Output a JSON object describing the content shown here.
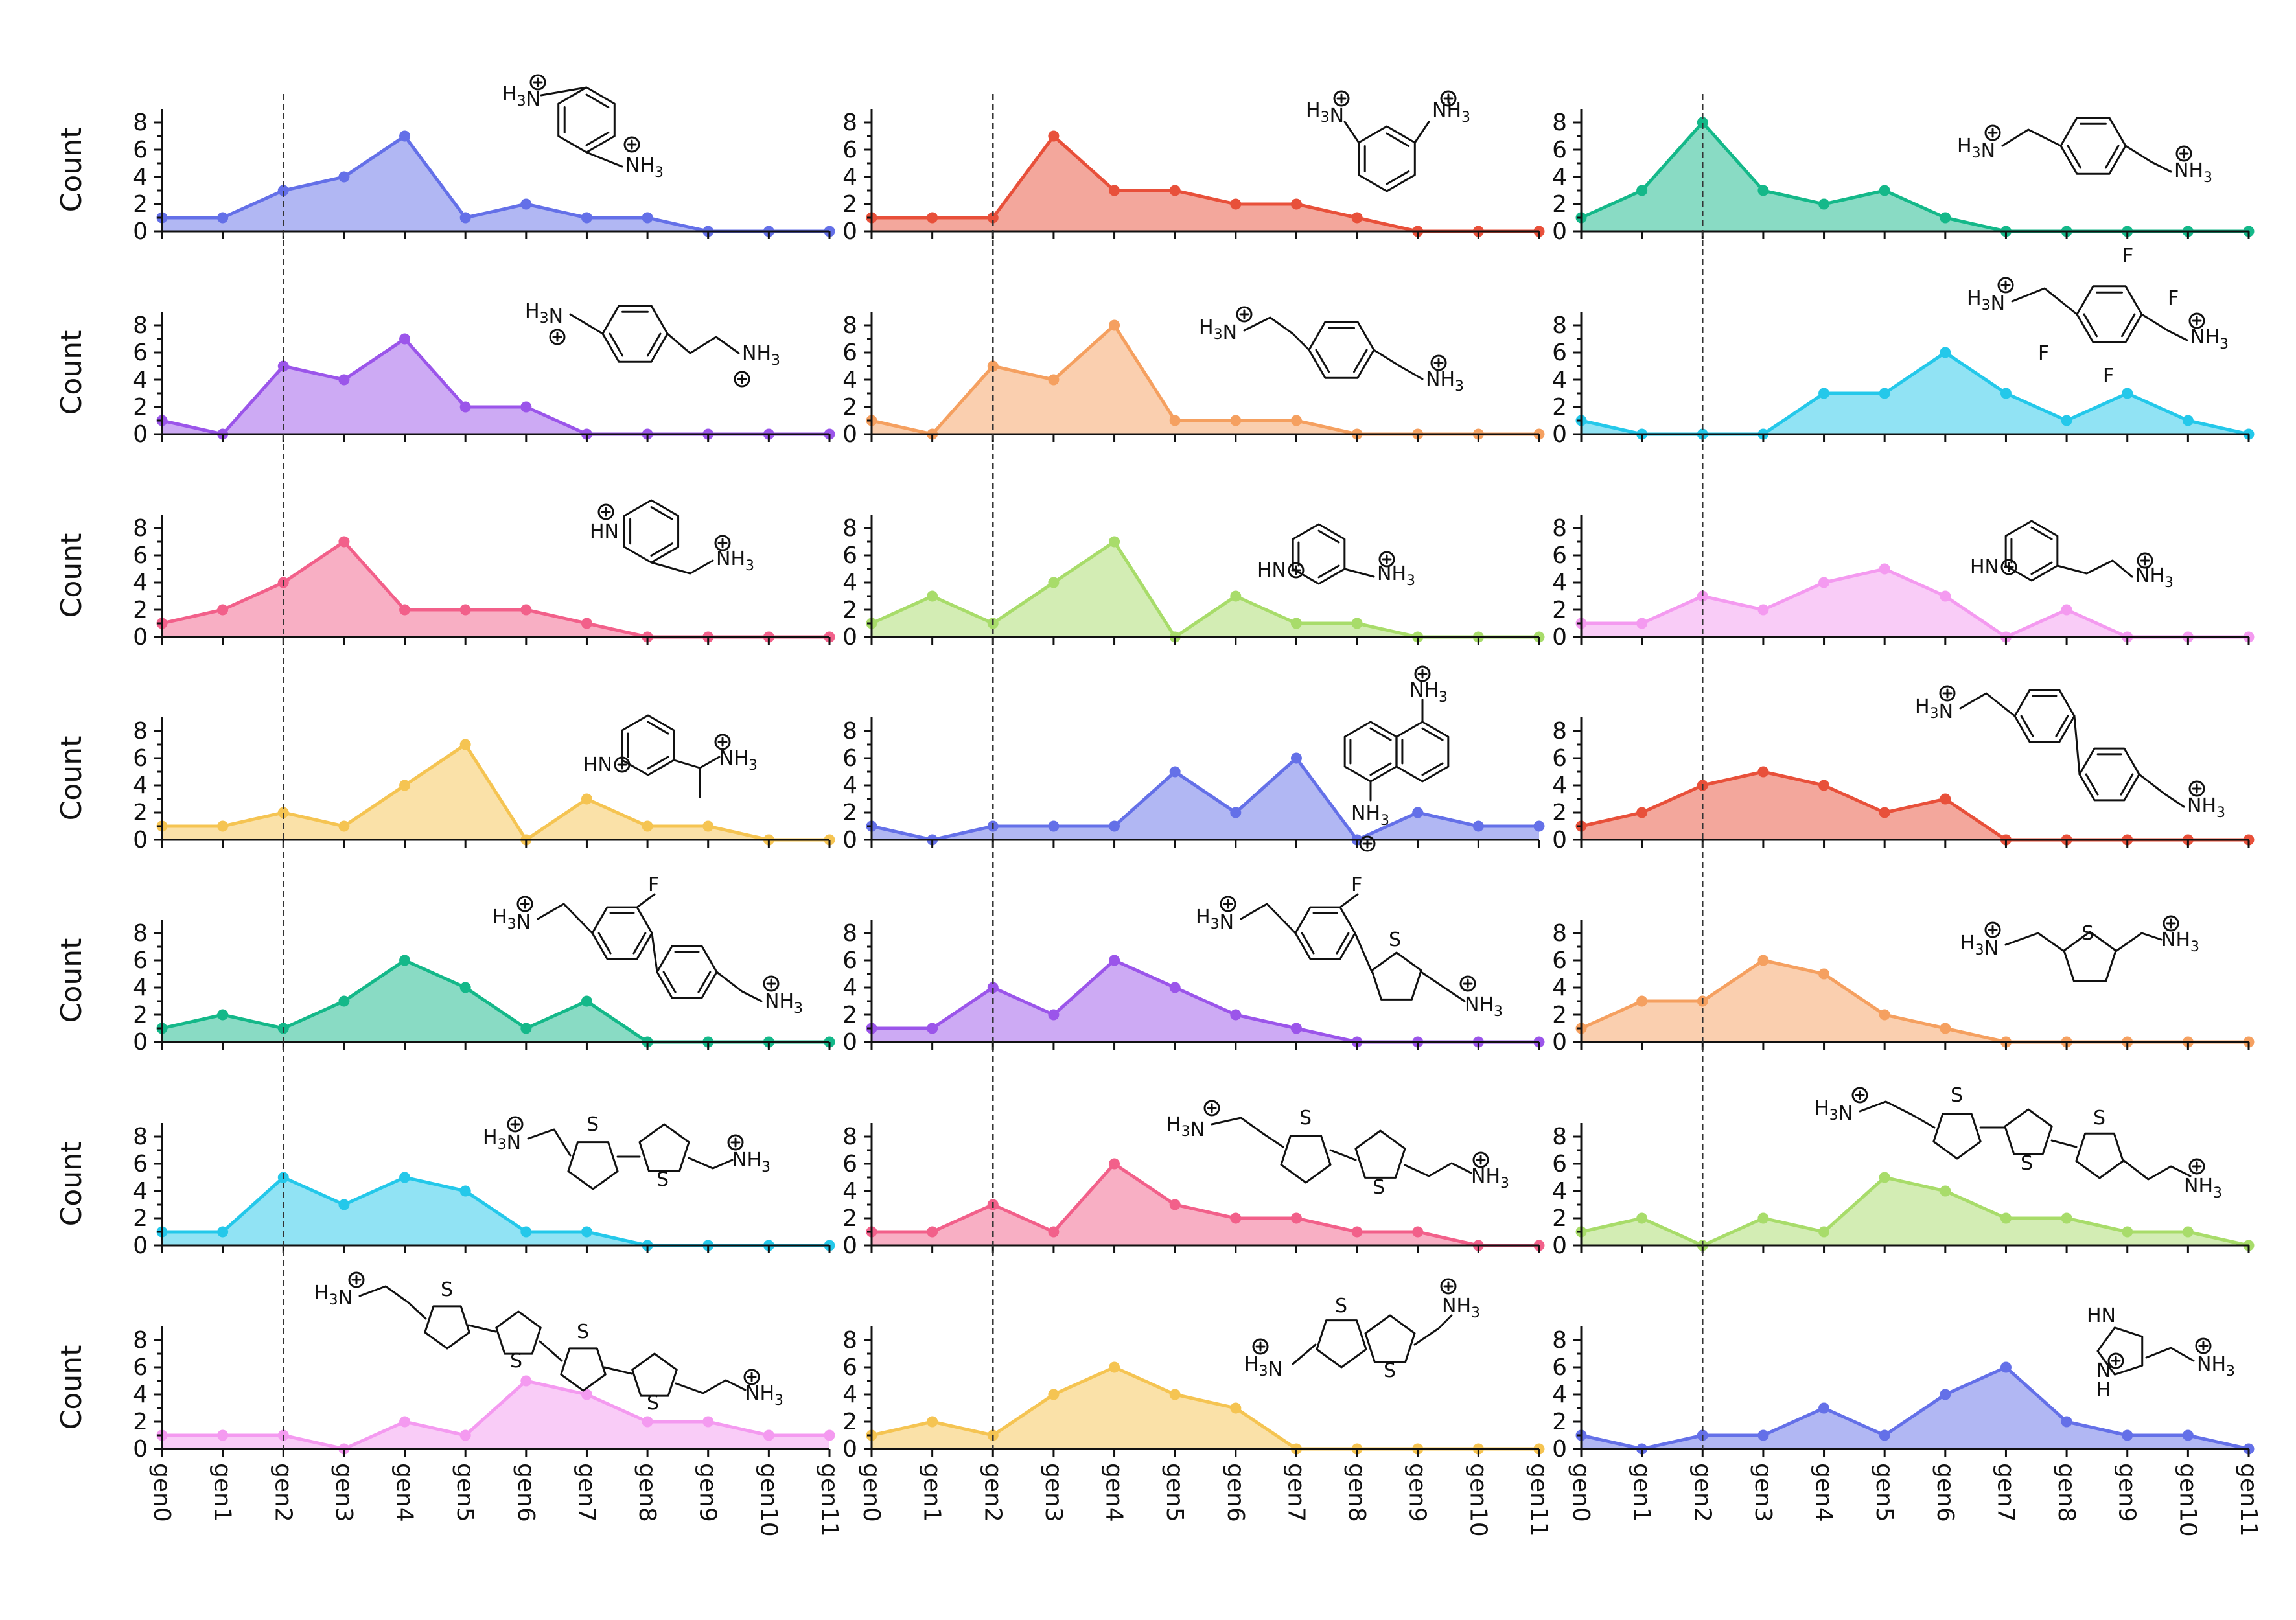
{
  "figure": {
    "ylabel": "Count",
    "x_categories": [
      "gen0",
      "gen1",
      "gen2",
      "gen3",
      "gen4",
      "gen5",
      "gen6",
      "gen7",
      "gen8",
      "gen9",
      "gen10",
      "gen11"
    ],
    "reference_line": "gen2",
    "y_ticks": [
      0,
      2,
      4,
      6,
      8
    ]
  },
  "chart_data": [
    {
      "type": "area",
      "panel": "r1c1",
      "categories": [
        "gen0",
        "gen1",
        "gen2",
        "gen3",
        "gen4",
        "gen5",
        "gen6",
        "gen7",
        "gen8",
        "gen9",
        "gen10",
        "gen11"
      ],
      "values": [
        1,
        1,
        3,
        4,
        7,
        1,
        2,
        1,
        1,
        0,
        0,
        0
      ],
      "color": "#6470e8",
      "ylabel": "Count",
      "ylim": [
        0,
        9
      ],
      "molecule": {
        "type": "benzene-para",
        "labels": [
          "H3N",
          "NH3"
        ],
        "charges": true
      }
    },
    {
      "type": "area",
      "panel": "r1c2",
      "categories": [
        "gen0",
        "gen1",
        "gen2",
        "gen3",
        "gen4",
        "gen5",
        "gen6",
        "gen7",
        "gen8",
        "gen9",
        "gen10",
        "gen11"
      ],
      "values": [
        1,
        1,
        1,
        7,
        3,
        3,
        2,
        2,
        1,
        0,
        0,
        0
      ],
      "color": "#e8503a",
      "ylabel": "",
      "ylim": [
        0,
        9
      ],
      "molecule": {
        "type": "benzene-meta",
        "labels": [
          "H3N",
          "NH3"
        ],
        "charges": true
      }
    },
    {
      "type": "area",
      "panel": "r1c3",
      "categories": [
        "gen0",
        "gen1",
        "gen2",
        "gen3",
        "gen4",
        "gen5",
        "gen6",
        "gen7",
        "gen8",
        "gen9",
        "gen10",
        "gen11"
      ],
      "values": [
        1,
        3,
        8,
        3,
        2,
        3,
        1,
        0,
        0,
        0,
        0,
        0
      ],
      "color": "#14b889",
      "ylabel": "",
      "ylim": [
        0,
        9
      ],
      "molecule": {
        "type": "xylyl",
        "labels": [
          "H3N",
          "NH3"
        ],
        "charges": true
      }
    },
    {
      "type": "area",
      "panel": "r2c1",
      "categories": [
        "gen0",
        "gen1",
        "gen2",
        "gen3",
        "gen4",
        "gen5",
        "gen6",
        "gen7",
        "gen8",
        "gen9",
        "gen10",
        "gen11"
      ],
      "values": [
        1,
        0,
        5,
        4,
        7,
        2,
        2,
        0,
        0,
        0,
        0,
        0
      ],
      "color": "#9b55ea",
      "ylabel": "Count",
      "ylim": [
        0,
        9
      ],
      "molecule": {
        "type": "aryl-ethyl",
        "labels": [
          "H3N",
          "NH3"
        ],
        "charges": true
      }
    },
    {
      "type": "area",
      "panel": "r2c2",
      "categories": [
        "gen0",
        "gen1",
        "gen2",
        "gen3",
        "gen4",
        "gen5",
        "gen6",
        "gen7",
        "gen8",
        "gen9",
        "gen10",
        "gen11"
      ],
      "values": [
        1,
        0,
        5,
        4,
        8,
        1,
        1,
        1,
        0,
        0,
        0,
        0
      ],
      "color": "#f5a060",
      "ylabel": "",
      "ylim": [
        0,
        9
      ],
      "molecule": {
        "type": "bis-ethyl",
        "labels": [
          "H3N",
          "NH3"
        ],
        "charges": true
      }
    },
    {
      "type": "area",
      "panel": "r2c3",
      "categories": [
        "gen0",
        "gen1",
        "gen2",
        "gen3",
        "gen4",
        "gen5",
        "gen6",
        "gen7",
        "gen8",
        "gen9",
        "gen10",
        "gen11"
      ],
      "values": [
        1,
        0,
        0,
        0,
        3,
        3,
        6,
        3,
        1,
        3,
        1,
        0
      ],
      "color": "#24c8ea",
      "ylabel": "",
      "ylim": [
        0,
        9
      ],
      "molecule": {
        "type": "tetrafluoro-xylyl",
        "labels": [
          "H3N",
          "NH3",
          "F",
          "F",
          "F",
          "F"
        ],
        "charges": true
      }
    },
    {
      "type": "area",
      "panel": "r3c1",
      "categories": [
        "gen0",
        "gen1",
        "gen2",
        "gen3",
        "gen4",
        "gen5",
        "gen6",
        "gen7",
        "gen8",
        "gen9",
        "gen10",
        "gen11"
      ],
      "values": [
        1,
        2,
        4,
        7,
        2,
        2,
        2,
        1,
        0,
        0,
        0,
        0
      ],
      "color": "#f2608a",
      "ylabel": "Count",
      "ylim": [
        0,
        9
      ],
      "molecule": {
        "type": "pyridinium-4-methyl",
        "labels": [
          "HN",
          "NH3"
        ],
        "charges": true
      }
    },
    {
      "type": "area",
      "panel": "r3c2",
      "categories": [
        "gen0",
        "gen1",
        "gen2",
        "gen3",
        "gen4",
        "gen5",
        "gen6",
        "gen7",
        "gen8",
        "gen9",
        "gen10",
        "gen11"
      ],
      "values": [
        1,
        3,
        1,
        4,
        7,
        0,
        3,
        1,
        1,
        0,
        0,
        0
      ],
      "color": "#a8dc6a",
      "ylabel": "",
      "ylim": [
        0,
        9
      ],
      "molecule": {
        "type": "pyridinium-3-methyl",
        "labels": [
          "HN",
          "NH3"
        ],
        "charges": true
      }
    },
    {
      "type": "area",
      "panel": "r3c3",
      "categories": [
        "gen0",
        "gen1",
        "gen2",
        "gen3",
        "gen4",
        "gen5",
        "gen6",
        "gen7",
        "gen8",
        "gen9",
        "gen10",
        "gen11"
      ],
      "values": [
        1,
        1,
        3,
        2,
        4,
        5,
        3,
        0,
        2,
        0,
        0,
        0
      ],
      "color": "#f49af0",
      "ylabel": "",
      "ylim": [
        0,
        9
      ],
      "molecule": {
        "type": "pyridinium-3-ethyl",
        "labels": [
          "HN",
          "NH3"
        ],
        "charges": true
      }
    },
    {
      "type": "area",
      "panel": "r4c1",
      "categories": [
        "gen0",
        "gen1",
        "gen2",
        "gen3",
        "gen4",
        "gen5",
        "gen6",
        "gen7",
        "gen8",
        "gen9",
        "gen10",
        "gen11"
      ],
      "values": [
        1,
        1,
        2,
        1,
        4,
        7,
        0,
        3,
        1,
        1,
        0,
        0
      ],
      "color": "#f5c452",
      "ylabel": "Count",
      "ylim": [
        0,
        9
      ],
      "molecule": {
        "type": "pyridinium-3-ethylidene",
        "labels": [
          "HN",
          "NH3"
        ],
        "charges": true
      }
    },
    {
      "type": "area",
      "panel": "r4c2",
      "categories": [
        "gen0",
        "gen1",
        "gen2",
        "gen3",
        "gen4",
        "gen5",
        "gen6",
        "gen7",
        "gen8",
        "gen9",
        "gen10",
        "gen11"
      ],
      "values": [
        1,
        0,
        1,
        1,
        1,
        5,
        2,
        6,
        0,
        2,
        1,
        1
      ],
      "color": "#6470e8",
      "ylabel": "",
      "ylim": [
        0,
        9
      ],
      "molecule": {
        "type": "naphthalene",
        "labels": [
          "NH3",
          "NH3"
        ],
        "charges": true
      }
    },
    {
      "type": "area",
      "panel": "r4c3",
      "categories": [
        "gen0",
        "gen1",
        "gen2",
        "gen3",
        "gen4",
        "gen5",
        "gen6",
        "gen7",
        "gen8",
        "gen9",
        "gen10",
        "gen11"
      ],
      "values": [
        1,
        2,
        4,
        5,
        4,
        2,
        3,
        0,
        0,
        0,
        0,
        0
      ],
      "color": "#e8503a",
      "ylabel": "",
      "ylim": [
        0,
        9
      ],
      "molecule": {
        "type": "biphenyl",
        "labels": [
          "H3N",
          "NH3"
        ],
        "charges": true
      }
    },
    {
      "type": "area",
      "panel": "r5c1",
      "categories": [
        "gen0",
        "gen1",
        "gen2",
        "gen3",
        "gen4",
        "gen5",
        "gen6",
        "gen7",
        "gen8",
        "gen9",
        "gen10",
        "gen11"
      ],
      "values": [
        1,
        2,
        1,
        3,
        6,
        4,
        1,
        3,
        0,
        0,
        0,
        0
      ],
      "color": "#14b889",
      "ylabel": "Count",
      "ylim": [
        0,
        9
      ],
      "molecule": {
        "type": "fluoro-biphenyl",
        "labels": [
          "H3N",
          "F",
          "NH3"
        ],
        "charges": true
      }
    },
    {
      "type": "area",
      "panel": "r5c2",
      "categories": [
        "gen0",
        "gen1",
        "gen2",
        "gen3",
        "gen4",
        "gen5",
        "gen6",
        "gen7",
        "gen8",
        "gen9",
        "gen10",
        "gen11"
      ],
      "values": [
        1,
        1,
        4,
        2,
        6,
        4,
        2,
        1,
        0,
        0,
        0,
        0
      ],
      "color": "#9b55ea",
      "ylabel": "",
      "ylim": [
        0,
        9
      ],
      "molecule": {
        "type": "fluoro-phenyl-thiophene",
        "labels": [
          "H3N",
          "F",
          "S",
          "NH3"
        ],
        "charges": true
      }
    },
    {
      "type": "area",
      "panel": "r5c3",
      "categories": [
        "gen0",
        "gen1",
        "gen2",
        "gen3",
        "gen4",
        "gen5",
        "gen6",
        "gen7",
        "gen8",
        "gen9",
        "gen10",
        "gen11"
      ],
      "values": [
        1,
        3,
        3,
        6,
        5,
        2,
        1,
        0,
        0,
        0,
        0,
        0
      ],
      "color": "#f5a060",
      "ylabel": "",
      "ylim": [
        0,
        9
      ],
      "molecule": {
        "type": "thiophene",
        "labels": [
          "H3N",
          "S",
          "NH3"
        ],
        "charges": true
      }
    },
    {
      "type": "area",
      "panel": "r6c1",
      "categories": [
        "gen0",
        "gen1",
        "gen2",
        "gen3",
        "gen4",
        "gen5",
        "gen6",
        "gen7",
        "gen8",
        "gen9",
        "gen10",
        "gen11"
      ],
      "values": [
        1,
        1,
        5,
        3,
        5,
        4,
        1,
        1,
        0,
        0,
        0,
        0
      ],
      "color": "#24c8ea",
      "ylabel": "Count",
      "ylim": [
        0,
        9
      ],
      "molecule": {
        "type": "bithiophene-methyl",
        "labels": [
          "H3N",
          "S",
          "S",
          "NH3"
        ],
        "charges": true
      }
    },
    {
      "type": "area",
      "panel": "r6c2",
      "categories": [
        "gen0",
        "gen1",
        "gen2",
        "gen3",
        "gen4",
        "gen5",
        "gen6",
        "gen7",
        "gen8",
        "gen9",
        "gen10",
        "gen11"
      ],
      "values": [
        1,
        1,
        3,
        1,
        6,
        3,
        2,
        2,
        1,
        1,
        0,
        0
      ],
      "color": "#f2608a",
      "ylabel": "",
      "ylim": [
        0,
        9
      ],
      "molecule": {
        "type": "bithiophene-ethyl",
        "labels": [
          "H3N",
          "S",
          "S",
          "NH3"
        ],
        "charges": true
      }
    },
    {
      "type": "area",
      "panel": "r6c3",
      "categories": [
        "gen0",
        "gen1",
        "gen2",
        "gen3",
        "gen4",
        "gen5",
        "gen6",
        "gen7",
        "gen8",
        "gen9",
        "gen10",
        "gen11"
      ],
      "values": [
        1,
        2,
        0,
        2,
        1,
        5,
        4,
        2,
        2,
        1,
        1,
        0
      ],
      "color": "#a8dc6a",
      "ylabel": "",
      "ylim": [
        0,
        9
      ],
      "molecule": {
        "type": "terthiophene-ethyl",
        "labels": [
          "H3N",
          "S",
          "S",
          "S",
          "NH3"
        ],
        "charges": true
      }
    },
    {
      "type": "area",
      "panel": "r7c1",
      "categories": [
        "gen0",
        "gen1",
        "gen2",
        "gen3",
        "gen4",
        "gen5",
        "gen6",
        "gen7",
        "gen8",
        "gen9",
        "gen10",
        "gen11"
      ],
      "values": [
        1,
        1,
        1,
        0,
        2,
        1,
        5,
        4,
        2,
        2,
        1,
        1
      ],
      "color": "#f49af0",
      "ylabel": "Count",
      "ylim": [
        0,
        9
      ],
      "molecule": {
        "type": "quaterthiophene-ethyl",
        "labels": [
          "H3N",
          "S",
          "S",
          "S",
          "S",
          "NH3"
        ],
        "charges": true
      }
    },
    {
      "type": "area",
      "panel": "r7c2",
      "categories": [
        "gen0",
        "gen1",
        "gen2",
        "gen3",
        "gen4",
        "gen5",
        "gen6",
        "gen7",
        "gen8",
        "gen9",
        "gen10",
        "gen11"
      ],
      "values": [
        1,
        2,
        1,
        4,
        6,
        4,
        3,
        0,
        0,
        0,
        0,
        0
      ],
      "color": "#f5c452",
      "ylabel": "",
      "ylim": [
        0,
        9
      ],
      "molecule": {
        "type": "thienothiophene",
        "labels": [
          "H3N",
          "S",
          "S",
          "NH3"
        ],
        "charges": true
      }
    },
    {
      "type": "area",
      "panel": "r7c3",
      "categories": [
        "gen0",
        "gen1",
        "gen2",
        "gen3",
        "gen4",
        "gen5",
        "gen6",
        "gen7",
        "gen8",
        "gen9",
        "gen10",
        "gen11"
      ],
      "values": [
        1,
        0,
        1,
        1,
        3,
        1,
        4,
        6,
        2,
        1,
        1,
        0
      ],
      "color": "#6470e8",
      "ylabel": "",
      "ylim": [
        0,
        9
      ],
      "molecule": {
        "type": "histamine",
        "labels": [
          "HN",
          "N",
          "H",
          "NH3"
        ],
        "charges": true
      }
    }
  ]
}
